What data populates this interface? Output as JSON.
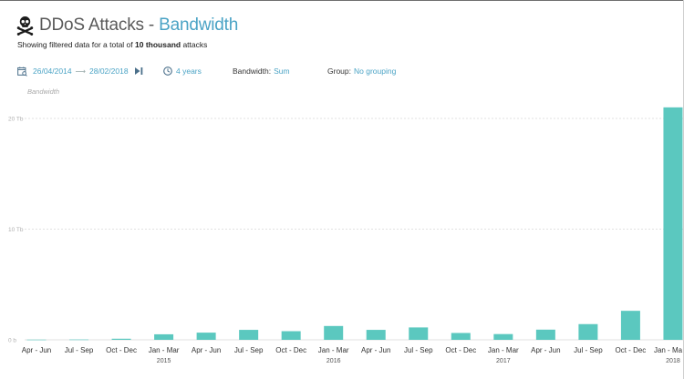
{
  "header": {
    "title_main": "DDoS Attacks",
    "title_sep": "-",
    "title_accent": "Bandwidth",
    "subtitle_prefix": "Showing filtered data for a total of",
    "subtitle_bold": "10 thousand",
    "subtitle_suffix": "attacks"
  },
  "filters": {
    "date_start": "26/04/2014",
    "date_end": "28/02/2018",
    "duration": "4 years",
    "bandwidth_label": "Bandwidth:",
    "bandwidth_value": "Sum",
    "group_label": "Group:",
    "group_value": "No grouping"
  },
  "colors": {
    "accent": "#4aa3c5",
    "bar": "#5bc8bf",
    "grid": "#d8d8d8"
  },
  "chart_data": {
    "type": "bar",
    "ylabel": "Bandwidth",
    "ylim": [
      0,
      25
    ],
    "yticks": [
      0,
      10,
      20
    ],
    "ytick_labels": [
      "0 b",
      "10 Tb",
      "20 Tb"
    ],
    "unit": "Tb",
    "categories": [
      "Apr - Jun",
      "Jul - Sep",
      "Oct - Dec",
      "Jan - Mar",
      "Apr - Jun",
      "Jul - Sep",
      "Oct - Dec",
      "Jan - Mar",
      "Apr - Jun",
      "Jul - Sep",
      "Oct - Dec",
      "Jan - Mar",
      "Apr - Jun",
      "Jul - Sep",
      "Oct - Dec",
      "Jan - Ma"
    ],
    "year_labels": [
      {
        "index": 3,
        "label": "2015"
      },
      {
        "index": 7,
        "label": "2016"
      },
      {
        "index": 11,
        "label": "2017"
      },
      {
        "index": 15,
        "label": "2018"
      }
    ],
    "values": [
      0.02,
      0.03,
      0.1,
      0.5,
      0.65,
      0.9,
      0.78,
      1.25,
      0.9,
      1.12,
      0.62,
      0.52,
      0.92,
      1.42,
      2.62,
      21.0
    ],
    "grid": true,
    "legend": "none"
  }
}
